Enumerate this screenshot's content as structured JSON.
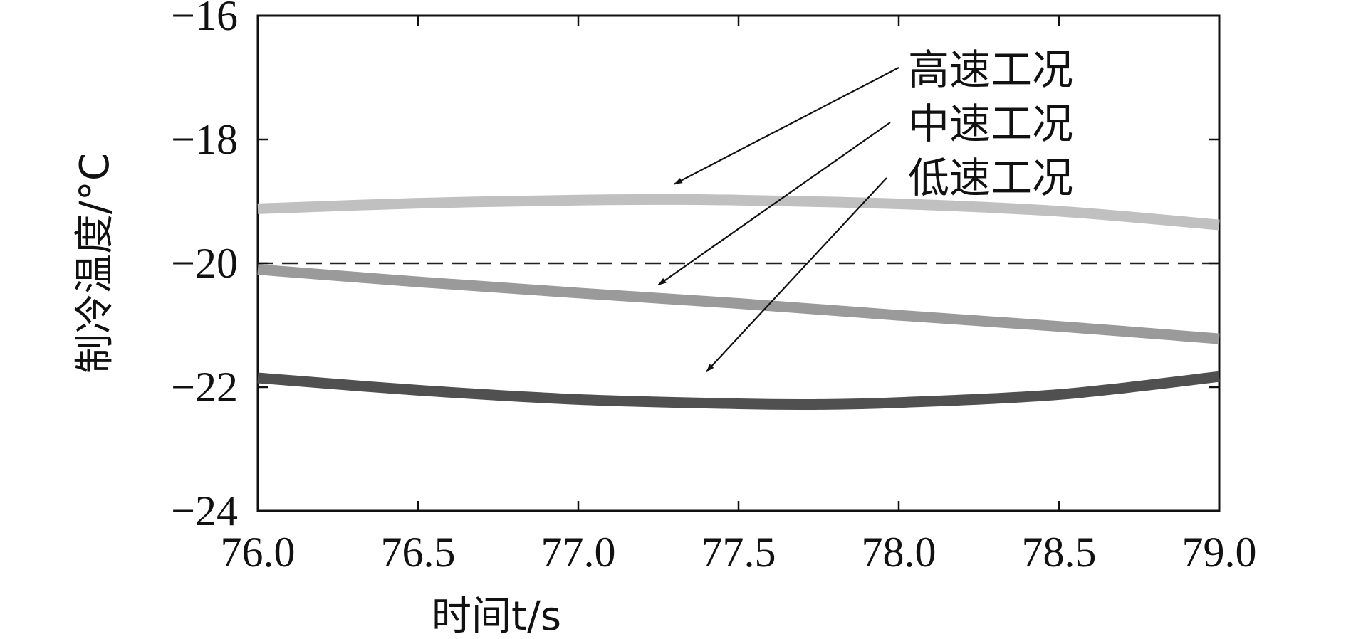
{
  "chart_data": {
    "type": "line",
    "title": "",
    "xlabel": "时间t/s",
    "ylabel": "制冷温度/°C",
    "xlim": [
      76.0,
      79.0
    ],
    "ylim": [
      -24,
      -16
    ],
    "x_ticks": [
      "76.0",
      "76.5",
      "77.0",
      "77.5",
      "78.0",
      "78.5",
      "79.0"
    ],
    "y_ticks": [
      "−16",
      "−18",
      "−20",
      "−22",
      "−24"
    ],
    "grid": false,
    "reference_line": {
      "y": -20,
      "style": "dashed"
    },
    "series": [
      {
        "name": "高速工况",
        "color": "#c0c0c0",
        "x": [
          76.0,
          76.5,
          77.0,
          77.25,
          77.5,
          78.0,
          78.5,
          79.0
        ],
        "y": [
          -19.12,
          -19.03,
          -18.98,
          -18.97,
          -18.98,
          -19.04,
          -19.16,
          -19.38
        ]
      },
      {
        "name": "中速工况",
        "color": "#9a9a9a",
        "x": [
          76.0,
          76.5,
          77.0,
          77.5,
          78.0,
          78.5,
          79.0
        ],
        "y": [
          -20.1,
          -20.3,
          -20.48,
          -20.65,
          -20.84,
          -21.02,
          -21.22
        ]
      },
      {
        "name": "低速工况",
        "color": "#505050",
        "x": [
          76.0,
          76.5,
          77.0,
          77.5,
          77.75,
          78.0,
          78.5,
          79.0
        ],
        "y": [
          -21.85,
          -22.05,
          -22.2,
          -22.27,
          -22.28,
          -22.25,
          -22.12,
          -21.83
        ]
      }
    ],
    "annotations": [
      {
        "text": "高速工况",
        "series": "高速工况",
        "arrow_to": [
          77.3,
          -18.72
        ]
      },
      {
        "text": "中速工况",
        "series": "中速工况",
        "arrow_to": [
          77.25,
          -20.35
        ]
      },
      {
        "text": "低速工况",
        "series": "低速工况",
        "arrow_to": [
          77.4,
          -21.75
        ]
      }
    ]
  }
}
